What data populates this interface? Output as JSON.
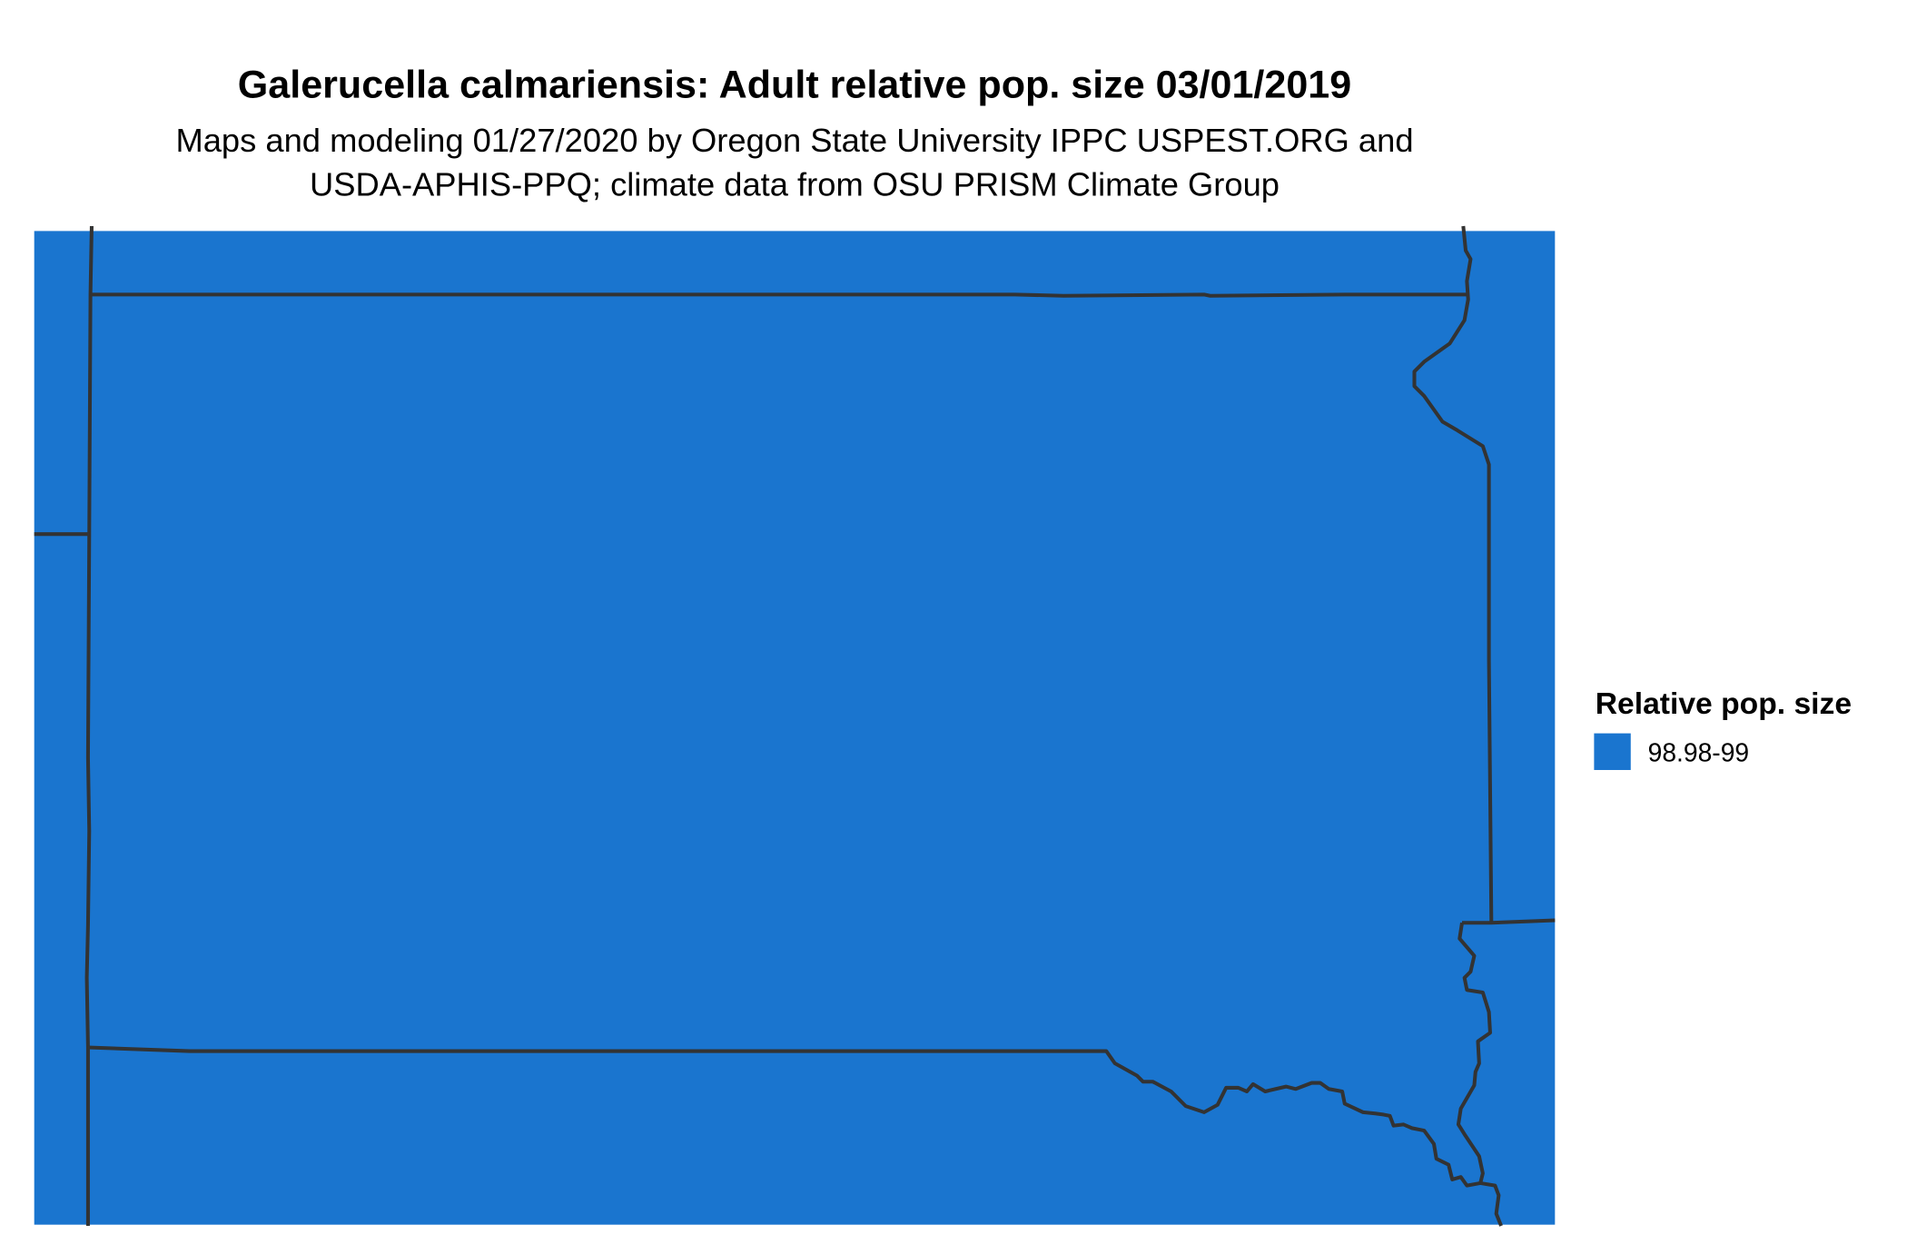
{
  "title": "Galerucella calmariensis: Adult relative pop. size 03/01/2019",
  "subtitle_line1": "Maps and modeling 01/27/2020 by Oregon State University IPPC USPEST.ORG and",
  "subtitle_line2": "USDA-APHIS-PPQ; climate data from OSU PRISM Climate Group",
  "legend": {
    "title": "Relative pop. size",
    "items": [
      {
        "label": "98.98-99",
        "color": "#1a75cf"
      }
    ]
  },
  "colors": {
    "fill": "#1a75cf",
    "border": "#333333"
  }
}
